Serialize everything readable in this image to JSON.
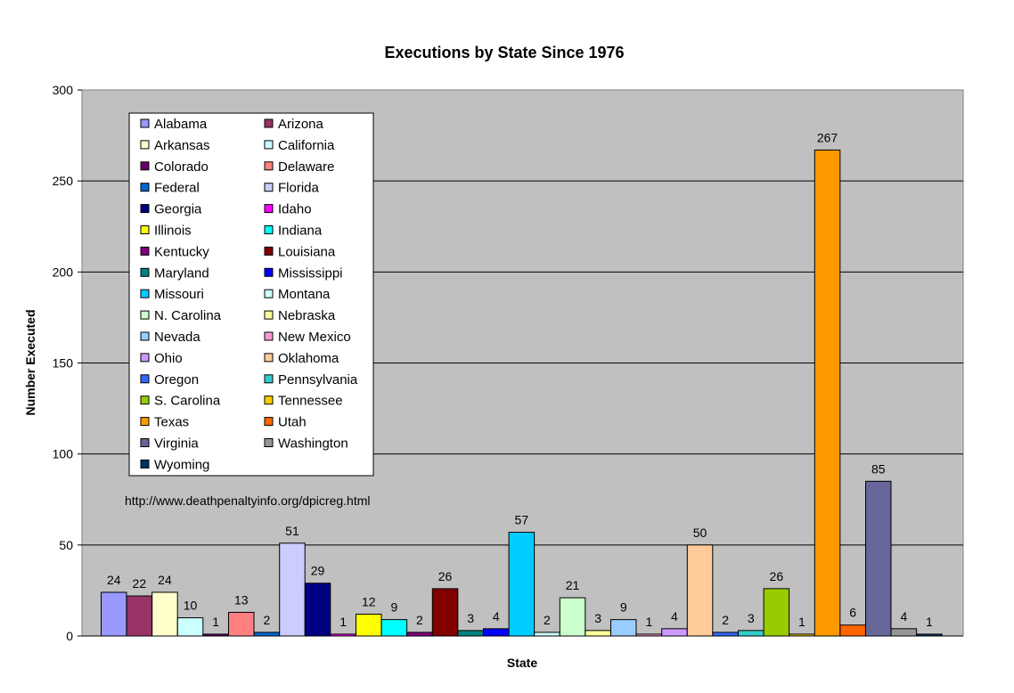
{
  "chart_data": {
    "type": "bar",
    "title": "Executions by State Since 1976",
    "xlabel": "State",
    "ylabel": "Number Executed",
    "ylim": [
      0,
      300
    ],
    "yticks": [
      0,
      50,
      100,
      150,
      200,
      250,
      300
    ],
    "grid": true,
    "legend_position": "top-left",
    "annotation": "http://www.deathpenaltyinfo.org/dpicreg.html",
    "series": [
      {
        "name": "Alabama",
        "value": 24,
        "color": "#9999FF"
      },
      {
        "name": "Arizona",
        "value": 22,
        "color": "#993366"
      },
      {
        "name": "Arkansas",
        "value": 24,
        "color": "#FFFFCC"
      },
      {
        "name": "California",
        "value": 10,
        "color": "#CCFFFF"
      },
      {
        "name": "Colorado",
        "value": 1,
        "color": "#660066"
      },
      {
        "name": "Delaware",
        "value": 13,
        "color": "#FF8080"
      },
      {
        "name": "Federal",
        "value": 2,
        "color": "#0066CC"
      },
      {
        "name": "Florida",
        "value": 51,
        "color": "#CCCCFF"
      },
      {
        "name": "Georgia",
        "value": 29,
        "color": "#000080"
      },
      {
        "name": "Idaho",
        "value": 1,
        "color": "#FF00FF"
      },
      {
        "name": "Illinois",
        "value": 12,
        "color": "#FFFF00"
      },
      {
        "name": "Indiana",
        "value": 9,
        "color": "#00FFFF"
      },
      {
        "name": "Kentucky",
        "value": 2,
        "color": "#800080"
      },
      {
        "name": "Louisiana",
        "value": 26,
        "color": "#800000"
      },
      {
        "name": "Maryland",
        "value": 3,
        "color": "#008080"
      },
      {
        "name": "Mississippi",
        "value": 4,
        "color": "#0000FF"
      },
      {
        "name": "Missouri",
        "value": 57,
        "color": "#00CCFF"
      },
      {
        "name": "Montana",
        "value": 2,
        "color": "#CCFFFF"
      },
      {
        "name": "N. Carolina",
        "value": 21,
        "color": "#CCFFCC"
      },
      {
        "name": "Nebraska",
        "value": 3,
        "color": "#FFFF99"
      },
      {
        "name": "Nevada",
        "value": 9,
        "color": "#99CCFF"
      },
      {
        "name": "New Mexico",
        "value": 1,
        "color": "#FF99CC"
      },
      {
        "name": "Ohio",
        "value": 4,
        "color": "#CC99FF"
      },
      {
        "name": "Oklahoma",
        "value": 50,
        "color": "#FFCC99"
      },
      {
        "name": "Oregon",
        "value": 2,
        "color": "#3366FF"
      },
      {
        "name": "Pennsylvania",
        "value": 3,
        "color": "#33CCCC"
      },
      {
        "name": "S. Carolina",
        "value": 26,
        "color": "#99CC00"
      },
      {
        "name": "Tennessee",
        "value": 1,
        "color": "#FFCC00"
      },
      {
        "name": "Texas",
        "value": 267,
        "color": "#FF9900"
      },
      {
        "name": "Utah",
        "value": 6,
        "color": "#FF6600"
      },
      {
        "name": "Virginia",
        "value": 85,
        "color": "#666699"
      },
      {
        "name": "Washington",
        "value": 4,
        "color": "#969696"
      },
      {
        "name": "Wyoming",
        "value": 1,
        "color": "#003366"
      }
    ]
  }
}
